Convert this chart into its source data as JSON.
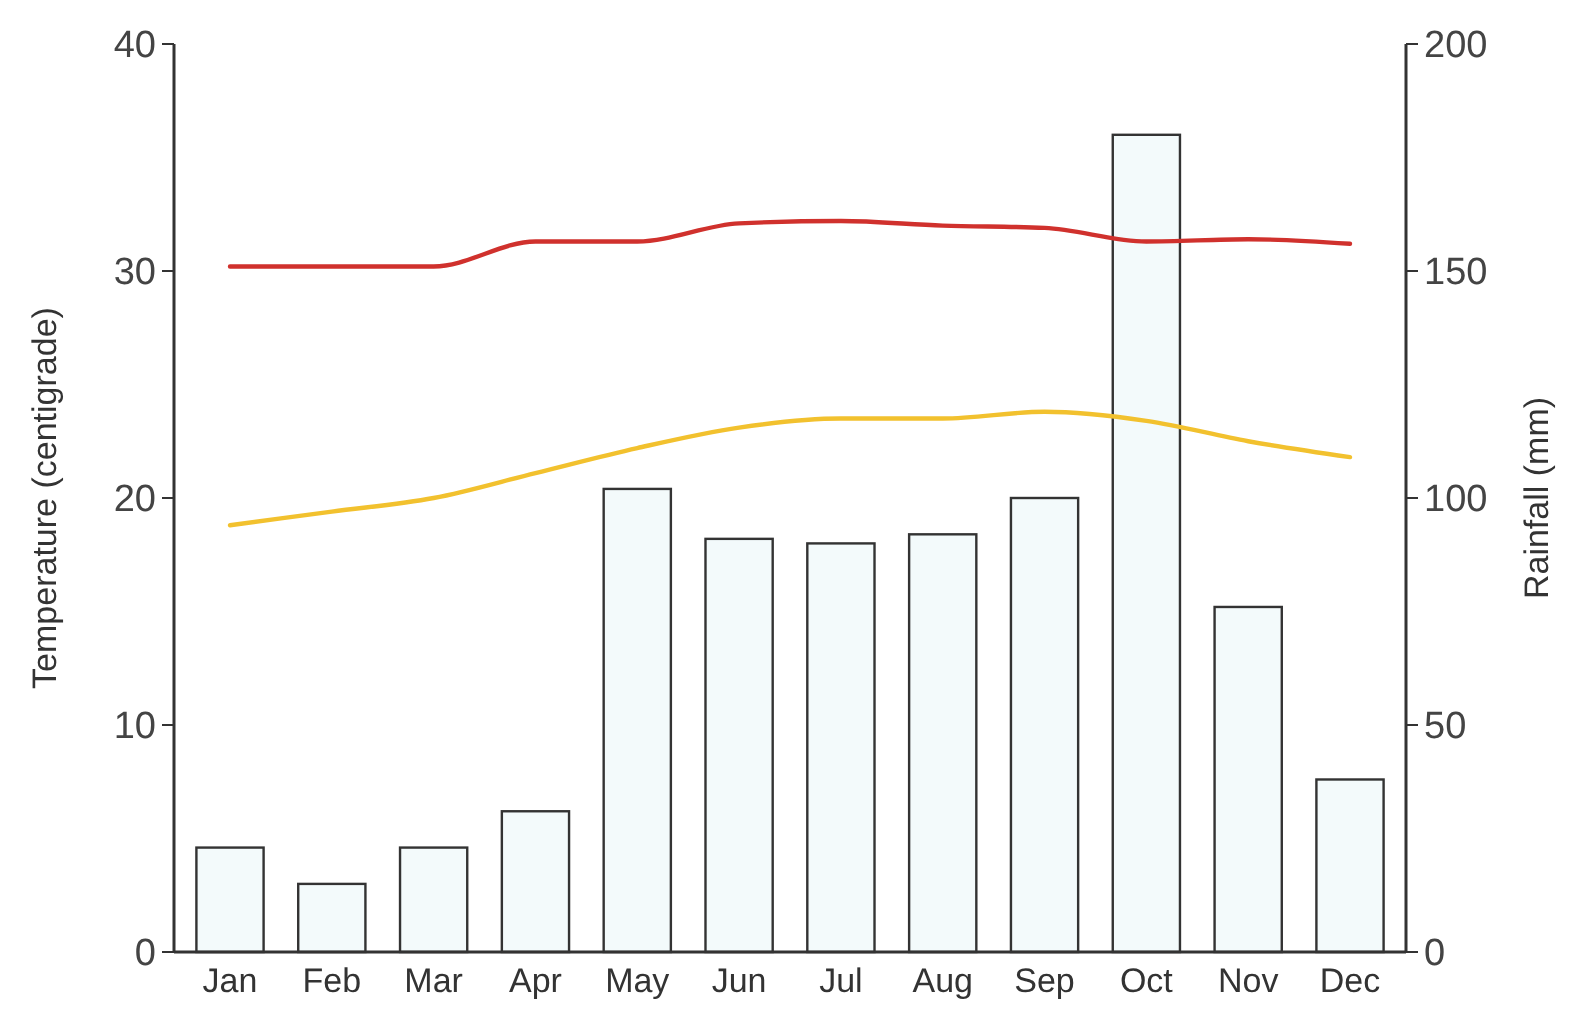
{
  "chart_data": {
    "type": "bar",
    "categories": [
      "Jan",
      "Feb",
      "Mar",
      "Apr",
      "May",
      "Jun",
      "Jul",
      "Aug",
      "Sep",
      "Oct",
      "Nov",
      "Dec"
    ],
    "ylabel": "Temperature (centigrade)",
    "y2label": "Rainfall (mm)",
    "ylim": [
      0,
      40
    ],
    "yticks": [
      0,
      10,
      20,
      30,
      40
    ],
    "y2lim": [
      0,
      200
    ],
    "y2ticks": [
      0,
      50,
      100,
      150,
      200
    ],
    "series": [
      {
        "axis": "y2",
        "color": "#f3fafb",
        "values": [
          23,
          15,
          23,
          31,
          102,
          91,
          90,
          92,
          100,
          180,
          76,
          38
        ]
      },
      {
        "type": "line",
        "color": "#d0312d",
        "values": [
          30.2,
          30.2,
          30.2,
          31.3,
          31.3,
          32.1,
          32.2,
          32.0,
          31.9,
          31.3,
          31.4,
          31.2
        ]
      },
      {
        "type": "line",
        "color": "#f2c12e",
        "values": [
          18.8,
          19.4,
          20.0,
          21.1,
          22.2,
          23.1,
          23.5,
          23.5,
          23.8,
          23.4,
          22.5,
          21.8
        ]
      }
    ]
  }
}
